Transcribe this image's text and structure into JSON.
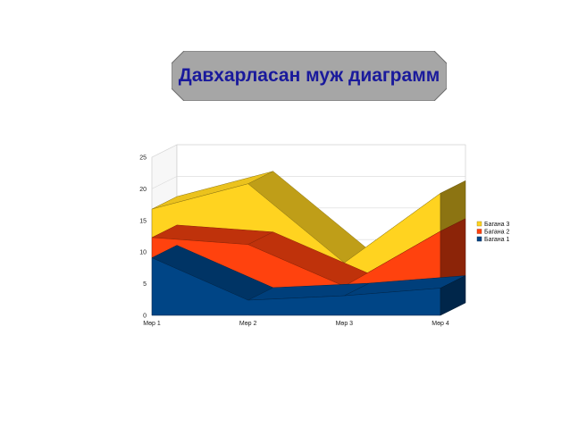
{
  "chart_data": {
    "type": "area",
    "stacked": true,
    "three_d": true,
    "title": "Давхарласан муж диаграмм",
    "categories": [
      "Мөр 1",
      "Мөр 2",
      "Мөр 3",
      "Мөр 4"
    ],
    "series": [
      {
        "name": "Багана 1",
        "values": [
          9.1,
          2.4,
          3.1,
          4.3
        ],
        "color": "#004586"
      },
      {
        "name": "Багана 2",
        "values": [
          3.2,
          8.8,
          1.5,
          9.0
        ],
        "color": "#ff420e"
      },
      {
        "name": "Багана 3",
        "values": [
          4.5,
          9.6,
          3.7,
          6.0
        ],
        "color": "#ffd320"
      }
    ],
    "ylim": [
      0,
      25
    ],
    "yticks": [
      "0",
      "5",
      "10",
      "15",
      "20",
      "25"
    ],
    "grid": true,
    "legend_position": "right"
  },
  "colors": {
    "title_text": "#1a1a9c",
    "title_box": "#a6a6a6"
  }
}
